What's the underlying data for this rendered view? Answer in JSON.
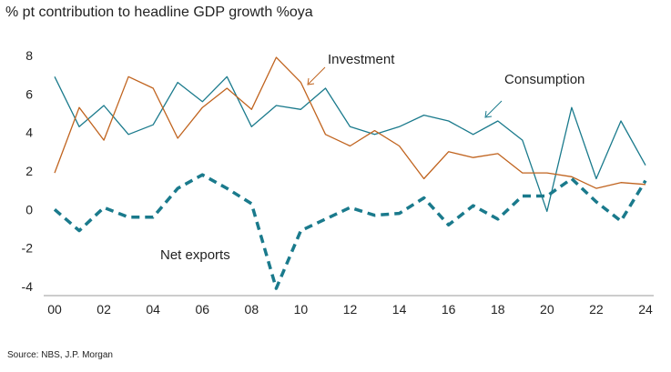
{
  "chart_data": {
    "type": "line",
    "title": "% pt contribution to headline GDP growth %oya",
    "x": [
      "00",
      "01",
      "02",
      "03",
      "04",
      "05",
      "06",
      "07",
      "08",
      "09",
      "10",
      "11",
      "12",
      "13",
      "14",
      "15",
      "16",
      "17",
      "18",
      "19",
      "20",
      "21",
      "22",
      "23",
      "24"
    ],
    "x_tick_labels": [
      "00",
      "02",
      "04",
      "06",
      "08",
      "10",
      "12",
      "14",
      "16",
      "18",
      "20",
      "22",
      "24"
    ],
    "y_tick_labels": [
      "8",
      "6",
      "4",
      "2",
      "0",
      "-2",
      "-4"
    ],
    "ylim": [
      -4,
      8
    ],
    "grid": false,
    "series": [
      {
        "name": "Consumption",
        "color": "#1a7a8c",
        "style": "solid",
        "values": [
          6.9,
          4.3,
          5.4,
          3.9,
          4.4,
          6.6,
          5.6,
          6.9,
          4.3,
          5.4,
          5.2,
          6.3,
          4.3,
          3.9,
          4.3,
          4.9,
          4.6,
          3.9,
          4.6,
          3.6,
          -0.1,
          5.3,
          1.6,
          4.6,
          2.3
        ]
      },
      {
        "name": "Investment",
        "color": "#c0631e",
        "style": "solid",
        "values": [
          1.9,
          5.3,
          3.6,
          6.9,
          6.3,
          3.7,
          5.3,
          6.3,
          5.2,
          7.9,
          6.6,
          3.9,
          3.3,
          4.1,
          3.3,
          1.6,
          3.0,
          2.7,
          2.9,
          1.9,
          1.9,
          1.7,
          1.1,
          1.4,
          1.3
        ]
      },
      {
        "name": "Net exports",
        "color": "#1a7a8c",
        "style": "dashed",
        "values": [
          0.0,
          -1.1,
          0.1,
          -0.4,
          -0.4,
          1.1,
          1.8,
          1.1,
          0.3,
          -4.1,
          -1.1,
          -0.5,
          0.1,
          -0.3,
          -0.2,
          0.6,
          -0.8,
          0.2,
          -0.5,
          0.7,
          0.7,
          1.6,
          0.4,
          -0.6,
          1.5
        ]
      }
    ],
    "annotations": {
      "investment": "Investment",
      "consumption": "Consumption",
      "net_exports": "Net exports"
    },
    "source": "Source: NBS, J.P. Morgan"
  }
}
